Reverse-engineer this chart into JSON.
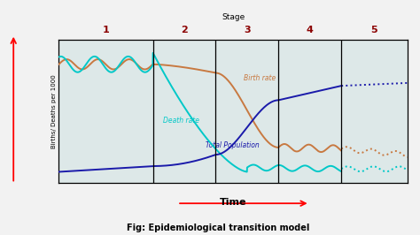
{
  "title": "Fig: Epidemiological transition model",
  "stage_label": "Stage",
  "time_label": "Time",
  "ylabel": "Births/ Deaths per 1000",
  "stage_numbers": [
    "1",
    "2",
    "3",
    "4",
    "5"
  ],
  "dividers": [
    0.27,
    0.45,
    0.63,
    0.81
  ],
  "birth_rate_color": "#c87941",
  "death_rate_color": "#00c8c8",
  "population_color": "#1a1aaa",
  "background_color": "#f2f2f2",
  "plot_bg": "#dde8e8"
}
